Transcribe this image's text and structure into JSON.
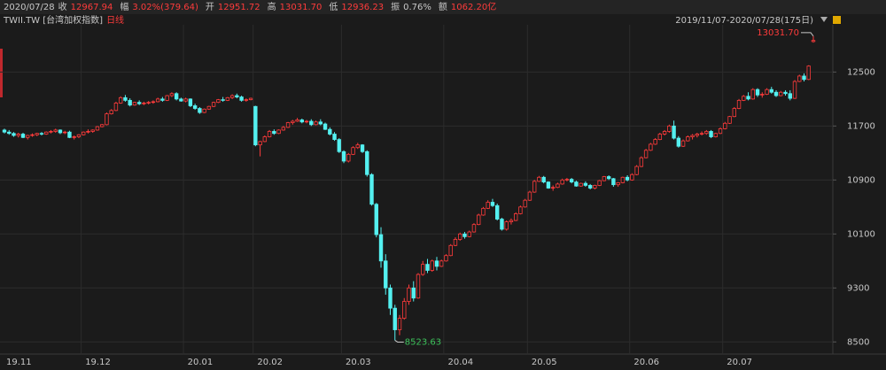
{
  "header": {
    "date": "2020/07/28",
    "fields": [
      {
        "label": "收",
        "value": "12967.94"
      },
      {
        "label": "幅",
        "value": "3.02%(379.64)"
      },
      {
        "label": "开",
        "value": "12951.72"
      },
      {
        "label": "高",
        "value": "13031.70"
      },
      {
        "label": "低",
        "value": "12936.23"
      },
      {
        "label": "振",
        "value": "0.76%"
      },
      {
        "label": "额",
        "value": "1062.20亿"
      }
    ],
    "symbol": "TWII.TW [台湾加权指数]",
    "period": "日线",
    "range": "2019/11/07-2020/07/28(175日)"
  },
  "chart_data": {
    "type": "candlestick",
    "ylim": [
      8320,
      13200
    ],
    "yticks": [
      12500,
      11700,
      10900,
      10100,
      9300,
      8500
    ],
    "grid": true,
    "up_color": "#ff3b3b",
    "down_color": "#54f0f0",
    "high_label": "13031.70",
    "low_label": "8523.63",
    "months": [
      {
        "label": "19.11",
        "candles": [
          [
            11640,
            11660,
            11590,
            11610
          ],
          [
            11610,
            11640,
            11570,
            11590
          ],
          [
            11590,
            11610,
            11540,
            11560
          ],
          [
            11560,
            11600,
            11530,
            11580
          ],
          [
            11580,
            11600,
            11520,
            11530
          ],
          [
            11530,
            11570,
            11500,
            11560
          ],
          [
            11560,
            11590,
            11540,
            11570
          ],
          [
            11570,
            11600,
            11550,
            11590
          ],
          [
            11590,
            11610,
            11560,
            11580
          ],
          [
            11580,
            11620,
            11570,
            11610
          ],
          [
            11610,
            11640,
            11590,
            11620
          ],
          [
            11620,
            11660,
            11600,
            11640
          ],
          [
            11640,
            11650,
            11580,
            11600
          ],
          [
            11600,
            11630,
            11580,
            11610
          ],
          [
            11610,
            11630,
            11520,
            11530
          ],
          [
            11530,
            11560,
            11500,
            11540
          ],
          [
            11540,
            11580,
            11520,
            11570
          ]
        ]
      },
      {
        "label": "19.12",
        "candles": [
          [
            11570,
            11620,
            11560,
            11610
          ],
          [
            11610,
            11650,
            11590,
            11620
          ],
          [
            11620,
            11650,
            11600,
            11640
          ],
          [
            11640,
            11700,
            11630,
            11690
          ],
          [
            11690,
            11730,
            11680,
            11720
          ],
          [
            11720,
            11900,
            11710,
            11880
          ],
          [
            11880,
            11950,
            11870,
            11930
          ],
          [
            11930,
            12060,
            11920,
            12040
          ],
          [
            12040,
            12140,
            12030,
            12120
          ],
          [
            12120,
            12160,
            12060,
            12080
          ],
          [
            12080,
            12110,
            11990,
            12010
          ],
          [
            12010,
            12060,
            12000,
            12050
          ],
          [
            12050,
            12080,
            12010,
            12030
          ],
          [
            12030,
            12060,
            12010,
            12040
          ],
          [
            12040,
            12070,
            12020,
            12050
          ],
          [
            12050,
            12080,
            12030,
            12060
          ],
          [
            12060,
            12120,
            12050,
            12100
          ],
          [
            12100,
            12130,
            12060,
            12080
          ],
          [
            12080,
            12160,
            12070,
            12150
          ],
          [
            12150,
            12200,
            12130,
            12180
          ],
          [
            12180,
            12200,
            12080,
            12100
          ],
          [
            12100,
            12120,
            12060,
            12070
          ]
        ]
      },
      {
        "label": "20.01",
        "candles": [
          [
            12070,
            12120,
            12050,
            12100
          ],
          [
            12100,
            12110,
            11980,
            12000
          ],
          [
            12000,
            12030,
            11940,
            11960
          ],
          [
            11960,
            11980,
            11880,
            11900
          ],
          [
            11900,
            11960,
            11890,
            11950
          ],
          [
            11950,
            12000,
            11940,
            11990
          ],
          [
            11990,
            12060,
            11980,
            12050
          ],
          [
            12050,
            12100,
            12040,
            12090
          ],
          [
            12090,
            12130,
            12060,
            12080
          ],
          [
            12080,
            12130,
            12070,
            12120
          ],
          [
            12120,
            12170,
            12100,
            12150
          ],
          [
            12150,
            12180,
            12110,
            12130
          ],
          [
            12130,
            12150,
            12060,
            12080
          ],
          [
            12080,
            12110,
            12060,
            12090
          ],
          [
            12090,
            12120,
            12080,
            12110
          ]
        ]
      },
      {
        "label": "20.02",
        "candles": [
          [
            11990,
            12000,
            11400,
            11420
          ],
          [
            11420,
            11480,
            11250,
            11470
          ],
          [
            11470,
            11560,
            11460,
            11540
          ],
          [
            11540,
            11640,
            11530,
            11620
          ],
          [
            11620,
            11650,
            11570,
            11590
          ],
          [
            11590,
            11650,
            11580,
            11640
          ],
          [
            11640,
            11700,
            11630,
            11680
          ],
          [
            11680,
            11760,
            11670,
            11750
          ],
          [
            11750,
            11790,
            11720,
            11770
          ],
          [
            11770,
            11820,
            11760,
            11790
          ],
          [
            11790,
            11810,
            11740,
            11760
          ],
          [
            11760,
            11790,
            11740,
            11770
          ],
          [
            11770,
            11800,
            11700,
            11720
          ],
          [
            11720,
            11780,
            11710,
            11760
          ],
          [
            11760,
            11800,
            11710,
            11730
          ],
          [
            11730,
            11750,
            11640,
            11650
          ],
          [
            11650,
            11680,
            11560,
            11580
          ],
          [
            11580,
            11610,
            11480,
            11500
          ],
          [
            11500,
            11520,
            11300,
            11320
          ]
        ]
      },
      {
        "label": "20.03",
        "candles": [
          [
            11320,
            11340,
            11150,
            11180
          ],
          [
            11180,
            11300,
            11160,
            11280
          ],
          [
            11280,
            11400,
            11270,
            11380
          ],
          [
            11380,
            11450,
            11360,
            11420
          ],
          [
            11420,
            11430,
            11300,
            11320
          ],
          [
            11320,
            11340,
            10950,
            10980
          ],
          [
            10980,
            11000,
            10520,
            10540
          ],
          [
            10540,
            10560,
            10050,
            10090
          ],
          [
            10090,
            10200,
            9600,
            9700
          ],
          [
            9700,
            9800,
            9200,
            9300
          ],
          [
            9300,
            9350,
            8900,
            9000
          ],
          [
            9000,
            9050,
            8523.63,
            8680
          ],
          [
            8680,
            8900,
            8600,
            8850
          ],
          [
            8850,
            9150,
            8830,
            9100
          ],
          [
            9100,
            9350,
            9050,
            9300
          ],
          [
            9300,
            9400,
            9100,
            9150
          ],
          [
            9150,
            9520,
            9140,
            9500
          ],
          [
            9500,
            9700,
            9480,
            9650
          ],
          [
            9650,
            9730,
            9520,
            9560
          ],
          [
            9560,
            9720,
            9540,
            9700
          ],
          [
            9700,
            9760,
            9560,
            9620
          ],
          [
            9620,
            9720,
            9610,
            9700
          ]
        ]
      },
      {
        "label": "20.04",
        "candles": [
          [
            9700,
            9800,
            9690,
            9780
          ],
          [
            9780,
            9950,
            9770,
            9930
          ],
          [
            9930,
            10050,
            9920,
            10020
          ],
          [
            10020,
            10120,
            10000,
            10100
          ],
          [
            10100,
            10130,
            10030,
            10060
          ],
          [
            10060,
            10150,
            10050,
            10130
          ],
          [
            10130,
            10260,
            10120,
            10240
          ],
          [
            10240,
            10400,
            10230,
            10380
          ],
          [
            10380,
            10500,
            10370,
            10480
          ],
          [
            10480,
            10600,
            10470,
            10570
          ],
          [
            10570,
            10620,
            10500,
            10520
          ],
          [
            10520,
            10550,
            10300,
            10320
          ],
          [
            10320,
            10340,
            10150,
            10170
          ],
          [
            10170,
            10300,
            10150,
            10280
          ],
          [
            10280,
            10330,
            10240,
            10300
          ],
          [
            10300,
            10420,
            10290,
            10400
          ],
          [
            10400,
            10520,
            10390,
            10500
          ],
          [
            10500,
            10620,
            10490,
            10600
          ]
        ]
      },
      {
        "label": "20.05",
        "candles": [
          [
            10600,
            10740,
            10590,
            10720
          ],
          [
            10720,
            10900,
            10710,
            10880
          ],
          [
            10880,
            10960,
            10870,
            10940
          ],
          [
            10940,
            10960,
            10850,
            10870
          ],
          [
            10870,
            10880,
            10770,
            10780
          ],
          [
            10780,
            10820,
            10740,
            10790
          ],
          [
            10790,
            10860,
            10780,
            10840
          ],
          [
            10840,
            10920,
            10830,
            10900
          ],
          [
            10900,
            10930,
            10880,
            10910
          ],
          [
            10910,
            10930,
            10850,
            10870
          ],
          [
            10870,
            10890,
            10800,
            10810
          ],
          [
            10810,
            10860,
            10800,
            10850
          ],
          [
            10850,
            10880,
            10800,
            10820
          ],
          [
            10820,
            10840,
            10760,
            10780
          ],
          [
            10780,
            10830,
            10760,
            10820
          ],
          [
            10820,
            10900,
            10810,
            10890
          ],
          [
            10890,
            10960,
            10880,
            10950
          ],
          [
            10950,
            10970,
            10900,
            10920
          ],
          [
            10920,
            10930,
            10800,
            10830
          ],
          [
            10830,
            10870,
            10800,
            10860
          ],
          [
            10860,
            10950,
            10850,
            10940
          ],
          [
            10940,
            10970,
            10880,
            10900
          ]
        ]
      },
      {
        "label": "20.06",
        "candles": [
          [
            10900,
            11000,
            10890,
            10980
          ],
          [
            10980,
            11120,
            10970,
            11100
          ],
          [
            11100,
            11250,
            11090,
            11230
          ],
          [
            11230,
            11360,
            11220,
            11340
          ],
          [
            11340,
            11450,
            11330,
            11430
          ],
          [
            11430,
            11520,
            11420,
            11500
          ],
          [
            11500,
            11600,
            11490,
            11580
          ],
          [
            11580,
            11640,
            11560,
            11620
          ],
          [
            11620,
            11720,
            11600,
            11700
          ],
          [
            11700,
            11780,
            11500,
            11520
          ],
          [
            11520,
            11550,
            11380,
            11400
          ],
          [
            11400,
            11500,
            11390,
            11480
          ],
          [
            11480,
            11560,
            11470,
            11540
          ],
          [
            11540,
            11580,
            11500,
            11560
          ],
          [
            11560,
            11600,
            11530,
            11580
          ],
          [
            11580,
            11620,
            11560,
            11590
          ],
          [
            11590,
            11640,
            11570,
            11620
          ],
          [
            11620,
            11640,
            11520,
            11540
          ],
          [
            11540,
            11600,
            11530,
            11590
          ],
          [
            11590,
            11680,
            11580,
            11660
          ]
        ]
      },
      {
        "label": "20.07",
        "candles": [
          [
            11660,
            11760,
            11650,
            11740
          ],
          [
            11740,
            11850,
            11730,
            11840
          ],
          [
            11840,
            11980,
            11830,
            11960
          ],
          [
            11960,
            12100,
            11950,
            12080
          ],
          [
            12080,
            12160,
            12070,
            12140
          ],
          [
            12140,
            12200,
            12080,
            12100
          ],
          [
            12100,
            12260,
            12090,
            12240
          ],
          [
            12240,
            12260,
            12130,
            12160
          ],
          [
            12160,
            12200,
            12120,
            12170
          ],
          [
            12170,
            12260,
            12160,
            12240
          ],
          [
            12240,
            12280,
            12180,
            12200
          ],
          [
            12200,
            12230,
            12130,
            12150
          ],
          [
            12150,
            12220,
            12140,
            12200
          ],
          [
            12200,
            12230,
            12150,
            12180
          ],
          [
            12180,
            12230,
            12080,
            12110
          ],
          [
            12110,
            12380,
            12100,
            12360
          ],
          [
            12360,
            12460,
            12350,
            12440
          ],
          [
            12440,
            12480,
            12360,
            12390
          ],
          [
            12390,
            12600,
            12380,
            12588.3
          ],
          [
            12951.72,
            13031.7,
            12936.23,
            12967.94
          ]
        ]
      }
    ]
  }
}
